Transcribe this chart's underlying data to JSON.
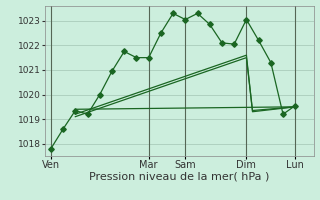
{
  "background_color": "#cceedd",
  "grid_color": "#aaccbb",
  "line_color": "#1a6622",
  "xlabel": "Pression niveau de la mer( hPa )",
  "xlabel_fontsize": 8,
  "ytick_labels": [
    "1018",
    "1019",
    "1020",
    "1021",
    "1022",
    "1023"
  ],
  "ytick_values": [
    1018,
    1019,
    1020,
    1021,
    1022,
    1023
  ],
  "xtick_labels": [
    "Ven",
    "Mar",
    "Sam",
    "Dim",
    "Lun"
  ],
  "xtick_positions": [
    0,
    8,
    11,
    16,
    20
  ],
  "ylim": [
    1017.5,
    1023.6
  ],
  "xlim": [
    -0.5,
    21.5
  ],
  "series1_x": [
    0,
    1,
    2,
    3,
    4,
    5,
    6,
    7,
    8,
    9,
    10,
    11,
    12,
    13,
    14,
    15,
    16,
    17,
    18,
    19,
    20
  ],
  "series1_y": [
    1017.8,
    1018.6,
    1019.35,
    1019.2,
    1020.0,
    1020.95,
    1021.75,
    1021.5,
    1021.5,
    1022.5,
    1023.3,
    1023.05,
    1023.3,
    1022.85,
    1022.1,
    1022.05,
    1023.05,
    1022.2,
    1021.3,
    1019.2,
    1019.55
  ],
  "series2_x": [
    2,
    20
  ],
  "series2_y": [
    1019.4,
    1019.5
  ],
  "series3_x": [
    2,
    16,
    16.5,
    20
  ],
  "series3_y": [
    1019.2,
    1021.6,
    1019.3,
    1019.5
  ],
  "series4_x": [
    2,
    16,
    16.5,
    20
  ],
  "series4_y": [
    1019.1,
    1021.5,
    1019.35,
    1019.5
  ],
  "vline_color": "#556655",
  "vline_positions": [
    0,
    8,
    11,
    16,
    20
  ]
}
